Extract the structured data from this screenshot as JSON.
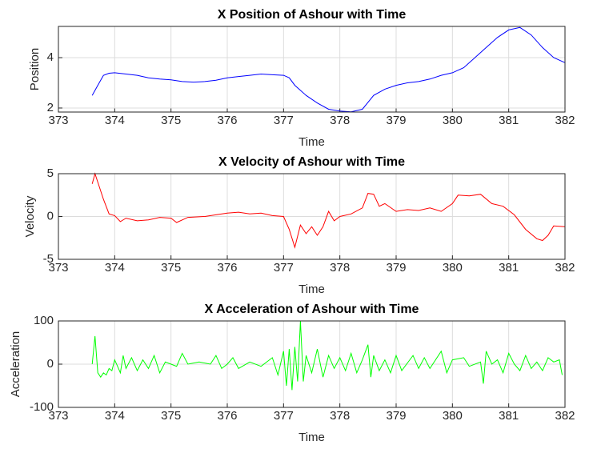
{
  "chart_data": [
    {
      "type": "line",
      "title": "X Position of Ashour with Time",
      "xlabel": "Time",
      "ylabel": "Position",
      "color": "#0000ff",
      "grid": true,
      "xlim": [
        373,
        382
      ],
      "xticks": [
        373,
        374,
        375,
        376,
        377,
        378,
        379,
        380,
        381,
        382
      ],
      "ylim": [
        1.84,
        5.24
      ],
      "yticks": [
        2,
        4
      ],
      "x": [
        373.6,
        373.7,
        373.8,
        373.9,
        374.0,
        374.2,
        374.4,
        374.6,
        374.8,
        375.0,
        375.2,
        375.4,
        375.6,
        375.8,
        376.0,
        376.2,
        376.4,
        376.6,
        376.8,
        377.0,
        377.1,
        377.2,
        377.4,
        377.6,
        377.8,
        378.0,
        378.2,
        378.4,
        378.6,
        378.8,
        379.0,
        379.2,
        379.4,
        379.6,
        379.8,
        380.0,
        380.2,
        380.4,
        380.6,
        380.8,
        381.0,
        381.2,
        381.4,
        381.6,
        381.8,
        382.0
      ],
      "values": [
        2.5,
        2.9,
        3.3,
        3.38,
        3.4,
        3.35,
        3.3,
        3.2,
        3.15,
        3.12,
        3.05,
        3.03,
        3.05,
        3.1,
        3.2,
        3.25,
        3.3,
        3.35,
        3.32,
        3.3,
        3.2,
        2.9,
        2.5,
        2.2,
        1.95,
        1.88,
        1.85,
        1.95,
        2.5,
        2.75,
        2.9,
        3.0,
        3.05,
        3.15,
        3.3,
        3.4,
        3.6,
        4.0,
        4.4,
        4.8,
        5.1,
        5.2,
        4.9,
        4.4,
        4.0,
        3.8
      ]
    },
    {
      "type": "line",
      "title": "X Velocity of Ashour with Time",
      "xlabel": "Time",
      "ylabel": "Velocity",
      "color": "#ff0000",
      "grid": true,
      "xlim": [
        373,
        382
      ],
      "xticks": [
        373,
        374,
        375,
        376,
        377,
        378,
        379,
        380,
        381,
        382
      ],
      "ylim": [
        -5,
        5
      ],
      "yticks": [
        -5,
        0,
        5
      ],
      "x": [
        373.6,
        373.65,
        373.8,
        373.9,
        374.0,
        374.1,
        374.2,
        374.4,
        374.6,
        374.8,
        375.0,
        375.1,
        375.3,
        375.6,
        375.8,
        376.0,
        376.2,
        376.4,
        376.6,
        376.8,
        377.0,
        377.1,
        377.2,
        377.3,
        377.4,
        377.5,
        377.6,
        377.7,
        377.8,
        377.9,
        378.0,
        378.2,
        378.4,
        378.5,
        378.6,
        378.7,
        378.8,
        379.0,
        379.2,
        379.4,
        379.6,
        379.8,
        380.0,
        380.1,
        380.3,
        380.5,
        380.7,
        380.9,
        381.1,
        381.3,
        381.5,
        381.6,
        381.7,
        381.8,
        382.0
      ],
      "values": [
        3.8,
        5,
        2,
        0.3,
        0.1,
        -0.6,
        -0.2,
        -0.5,
        -0.4,
        -0.1,
        -0.2,
        -0.7,
        -0.1,
        0,
        0.2,
        0.4,
        0.5,
        0.3,
        0.4,
        0.1,
        0,
        -1.5,
        -3.6,
        -1,
        -2,
        -1.2,
        -2.2,
        -1.2,
        0.6,
        -0.5,
        0,
        0.3,
        1,
        2.7,
        2.6,
        1.2,
        1.5,
        0.6,
        0.8,
        0.7,
        1,
        0.6,
        1.5,
        2.5,
        2.4,
        2.6,
        1.5,
        1.2,
        0.2,
        -1.5,
        -2.6,
        -2.8,
        -2.2,
        -1.1,
        -1.2
      ]
    },
    {
      "type": "line",
      "title": "X Acceleration of Ashour with Time",
      "xlabel": "Time",
      "ylabel": "Acceleration",
      "color": "#00ff00",
      "grid": true,
      "xlim": [
        373,
        382
      ],
      "xticks": [
        373,
        374,
        375,
        376,
        377,
        378,
        379,
        380,
        381,
        382
      ],
      "ylim": [
        -100,
        100
      ],
      "yticks": [
        -100,
        0,
        100
      ],
      "x": [
        373.6,
        373.65,
        373.7,
        373.75,
        373.8,
        373.85,
        373.9,
        373.95,
        374.0,
        374.05,
        374.1,
        374.15,
        374.2,
        374.3,
        374.4,
        374.5,
        374.6,
        374.7,
        374.8,
        374.9,
        375.0,
        375.1,
        375.2,
        375.3,
        375.5,
        375.7,
        375.8,
        375.9,
        376.0,
        376.1,
        376.2,
        376.4,
        376.6,
        376.8,
        376.9,
        377.0,
        377.05,
        377.1,
        377.15,
        377.2,
        377.25,
        377.3,
        377.35,
        377.4,
        377.5,
        377.6,
        377.7,
        377.8,
        377.9,
        378.0,
        378.1,
        378.2,
        378.3,
        378.4,
        378.5,
        378.55,
        378.6,
        378.7,
        378.8,
        378.9,
        379.0,
        379.1,
        379.3,
        379.4,
        379.5,
        379.6,
        379.8,
        379.9,
        380.0,
        380.2,
        380.3,
        380.5,
        380.55,
        380.6,
        380.7,
        380.8,
        380.9,
        381.0,
        381.1,
        381.2,
        381.3,
        381.4,
        381.5,
        381.6,
        381.7,
        381.8,
        381.9,
        381.95
      ],
      "values": [
        0,
        65,
        -20,
        -30,
        -20,
        -25,
        -10,
        -15,
        10,
        -5,
        -20,
        20,
        -10,
        15,
        -15,
        10,
        -10,
        20,
        -20,
        5,
        0,
        -5,
        25,
        0,
        5,
        0,
        20,
        -10,
        0,
        15,
        -10,
        5,
        -5,
        15,
        -25,
        30,
        -50,
        35,
        -60,
        40,
        -40,
        100,
        -40,
        20,
        -20,
        35,
        -30,
        20,
        -10,
        15,
        -15,
        25,
        -20,
        10,
        45,
        -30,
        20,
        -15,
        10,
        -20,
        20,
        -15,
        20,
        -10,
        15,
        -10,
        30,
        -20,
        10,
        15,
        -5,
        5,
        -45,
        30,
        0,
        10,
        -20,
        25,
        0,
        -15,
        20,
        -10,
        5,
        -15,
        15,
        5,
        10,
        -25
      ]
    }
  ]
}
